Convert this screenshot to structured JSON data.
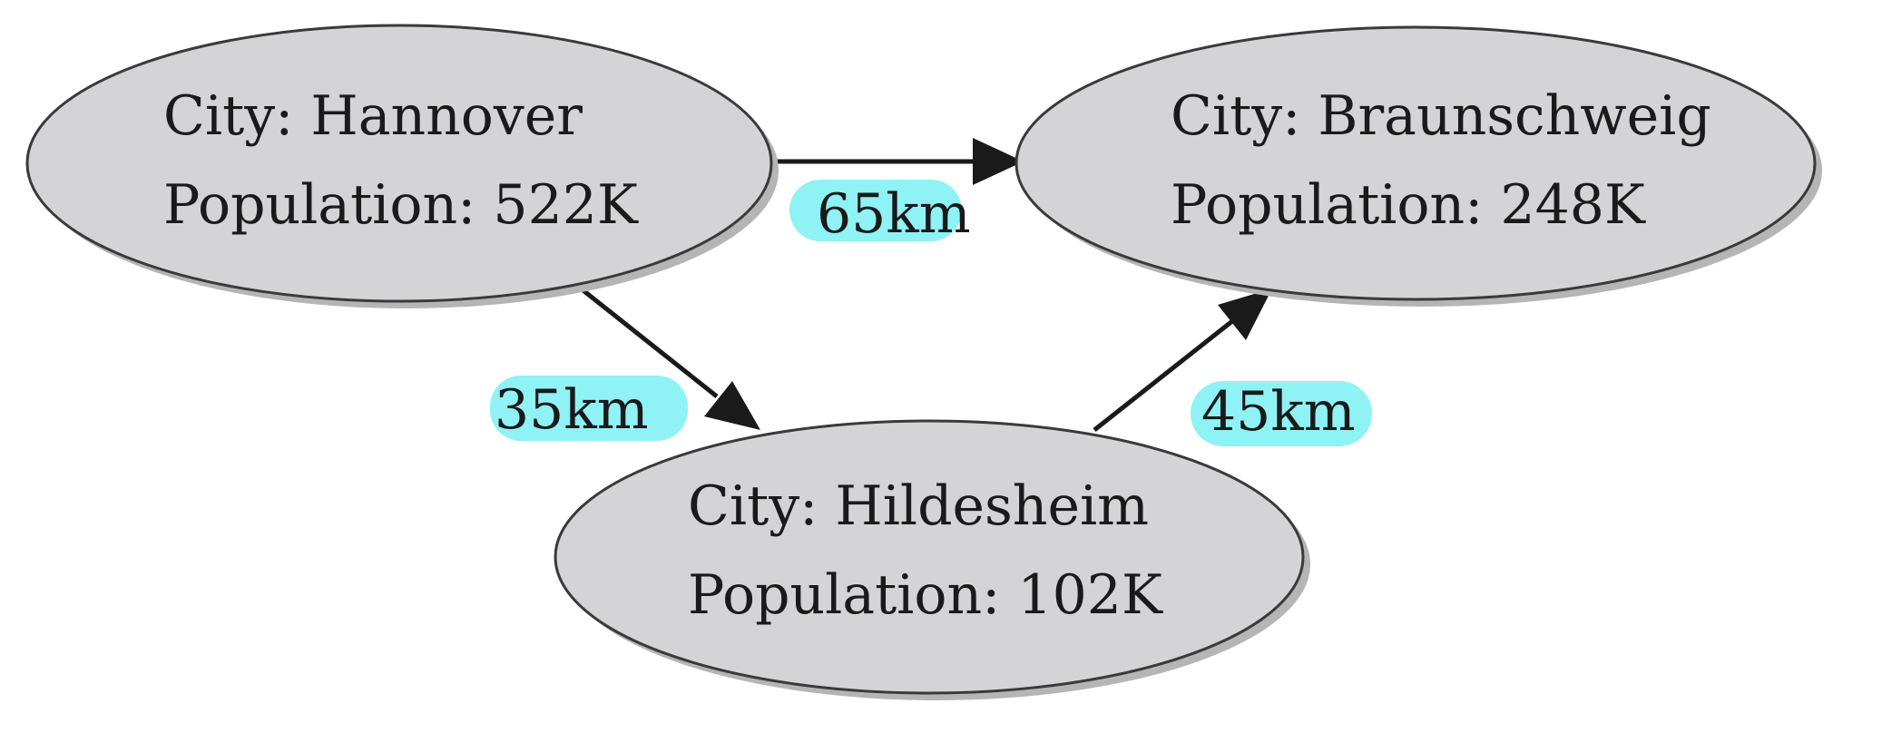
{
  "nodes": [
    {
      "id": "hannover",
      "city_line": "City: Hannover",
      "population_line": "Population: 522K"
    },
    {
      "id": "braunschweig",
      "city_line": "City: Braunschweig",
      "population_line": "Population: 248K"
    },
    {
      "id": "hildesheim",
      "city_line": "City: Hildesheim",
      "population_line": "Population: 102K"
    }
  ],
  "edges": [
    {
      "from": "hannover",
      "to": "braunschweig",
      "label": "65km"
    },
    {
      "from": "hannover",
      "to": "hildesheim",
      "label": "35km"
    },
    {
      "from": "hildesheim",
      "to": "braunschweig",
      "label": "45km"
    }
  ],
  "colors": {
    "node_fill": "#d4d4d6",
    "node_stroke": "#3a3a3a",
    "node_shadow": "#b5b5b5",
    "edge": "#1a1a1a",
    "label_highlight": "#8ff2f5"
  }
}
